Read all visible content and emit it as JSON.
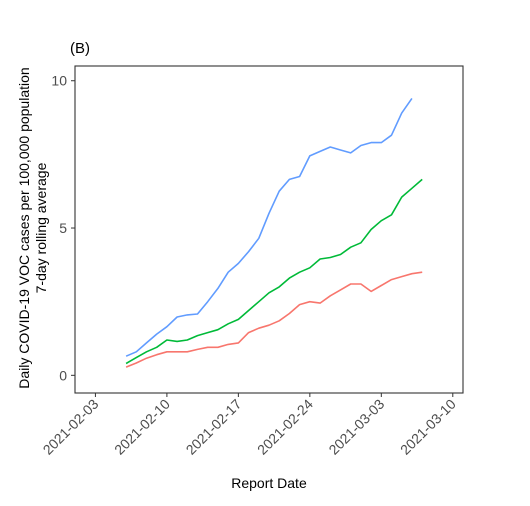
{
  "chart_data": {
    "type": "line",
    "panel_label": "(B)",
    "xlabel": "Report Date",
    "ylabel_line1": "Daily COVID-19 VOC cases per 100,000 population",
    "ylabel_line2": "7-day rolling average",
    "xlim": [
      "2021-02-01",
      "2021-03-11"
    ],
    "ylim": [
      -0.6,
      10.5
    ],
    "x_ticks": [
      "2021-02-03",
      "2021-02-10",
      "2021-02-17",
      "2021-02-24",
      "2021-03-03",
      "2021-03-10"
    ],
    "y_ticks": [
      0,
      5,
      10
    ],
    "y_tick_labels": [
      "0",
      "5",
      "10"
    ],
    "grid": false,
    "legend": "none",
    "series": [
      {
        "color": "#619cff",
        "x": [
          "2021-02-06",
          "2021-02-07",
          "2021-02-08",
          "2021-02-09",
          "2021-02-10",
          "2021-02-11",
          "2021-02-12",
          "2021-02-13",
          "2021-02-14",
          "2021-02-15",
          "2021-02-16",
          "2021-02-17",
          "2021-02-18",
          "2021-02-19",
          "2021-02-20",
          "2021-02-21",
          "2021-02-22",
          "2021-02-23",
          "2021-02-24",
          "2021-02-25",
          "2021-02-26",
          "2021-02-27",
          "2021-02-28",
          "2021-03-01",
          "2021-03-02",
          "2021-03-03",
          "2021-03-04",
          "2021-03-05",
          "2021-03-06"
        ],
        "values": [
          0.65,
          0.8,
          1.1,
          1.4,
          1.65,
          1.98,
          2.05,
          2.08,
          2.5,
          2.95,
          3.5,
          3.8,
          4.2,
          4.65,
          5.5,
          6.25,
          6.65,
          6.75,
          7.45,
          7.6,
          7.75,
          7.65,
          7.55,
          7.8,
          7.9,
          7.9,
          8.15,
          8.9,
          9.4
        ]
      },
      {
        "color": "#00ba38",
        "x": [
          "2021-02-06",
          "2021-02-07",
          "2021-02-08",
          "2021-02-09",
          "2021-02-10",
          "2021-02-11",
          "2021-02-12",
          "2021-02-13",
          "2021-02-14",
          "2021-02-15",
          "2021-02-16",
          "2021-02-17",
          "2021-02-18",
          "2021-02-19",
          "2021-02-20",
          "2021-02-21",
          "2021-02-22",
          "2021-02-23",
          "2021-02-24",
          "2021-02-25",
          "2021-02-26",
          "2021-02-27",
          "2021-02-28",
          "2021-03-01",
          "2021-03-02",
          "2021-03-03",
          "2021-03-04",
          "2021-03-05",
          "2021-03-06",
          "2021-03-07"
        ],
        "values": [
          0.4,
          0.6,
          0.8,
          0.95,
          1.2,
          1.15,
          1.2,
          1.35,
          1.45,
          1.55,
          1.75,
          1.9,
          2.2,
          2.5,
          2.8,
          3.0,
          3.3,
          3.5,
          3.65,
          3.95,
          4.0,
          4.1,
          4.35,
          4.5,
          4.95,
          5.25,
          5.45,
          6.05,
          6.35,
          6.65
        ]
      },
      {
        "color": "#f8766d",
        "x": [
          "2021-02-06",
          "2021-02-07",
          "2021-02-08",
          "2021-02-09",
          "2021-02-10",
          "2021-02-11",
          "2021-02-12",
          "2021-02-13",
          "2021-02-14",
          "2021-02-15",
          "2021-02-16",
          "2021-02-17",
          "2021-02-18",
          "2021-02-19",
          "2021-02-20",
          "2021-02-21",
          "2021-02-22",
          "2021-02-23",
          "2021-02-24",
          "2021-02-25",
          "2021-02-26",
          "2021-02-27",
          "2021-02-28",
          "2021-03-01",
          "2021-03-02",
          "2021-03-03",
          "2021-03-04",
          "2021-03-05",
          "2021-03-06",
          "2021-03-07"
        ],
        "values": [
          0.28,
          0.42,
          0.58,
          0.7,
          0.8,
          0.8,
          0.8,
          0.88,
          0.95,
          0.95,
          1.05,
          1.1,
          1.45,
          1.6,
          1.7,
          1.85,
          2.1,
          2.4,
          2.5,
          2.45,
          2.7,
          2.9,
          3.1,
          3.1,
          2.85,
          3.05,
          3.25,
          3.35,
          3.45,
          3.5
        ]
      }
    ]
  }
}
